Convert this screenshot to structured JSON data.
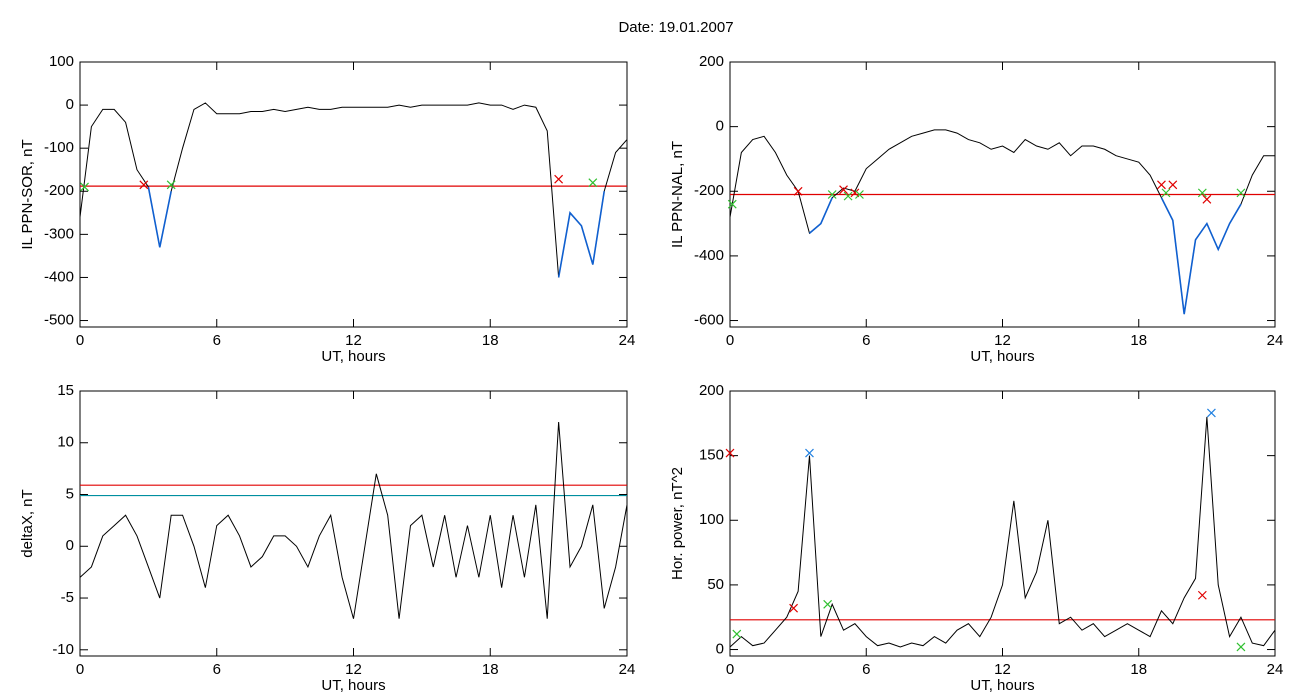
{
  "title": "Date:  19.01.2007",
  "chart_data": [
    {
      "type": "line",
      "ylabel": "IL PPN-SOR, nT",
      "xlabel": "UT, hours",
      "xlim": [
        0,
        24
      ],
      "xticks": [
        0,
        6,
        12,
        18,
        24
      ],
      "ylim": [
        -515,
        100
      ],
      "yticks": [
        100,
        0,
        -100,
        -200,
        -300,
        -400,
        -500
      ],
      "series": [
        {
          "color": "#000000",
          "below_color": "#1060d0",
          "x": [
            0,
            0.5,
            1,
            1.5,
            2,
            2.5,
            3,
            3.5,
            4,
            4.5,
            5,
            5.5,
            6,
            6.5,
            7,
            7.5,
            8,
            8.5,
            9,
            9.5,
            10,
            10.5,
            11,
            11.5,
            12,
            12.5,
            13,
            13.5,
            14,
            14.5,
            15,
            15.5,
            16,
            16.5,
            17,
            17.5,
            18,
            18.5,
            19,
            19.5,
            20,
            20.5,
            21,
            21.5,
            22,
            22.5,
            23,
            23.5,
            24
          ],
          "values": [
            -260,
            -50,
            -10,
            -10,
            -40,
            -150,
            -190,
            -330,
            -200,
            -100,
            -10,
            5,
            -20,
            -20,
            -20,
            -15,
            -15,
            -10,
            -15,
            -10,
            -5,
            -10,
            -10,
            -5,
            -5,
            -5,
            -5,
            -5,
            0,
            -5,
            0,
            0,
            0,
            0,
            0,
            5,
            0,
            0,
            -10,
            0,
            -5,
            -60,
            -400,
            -250,
            -280,
            -370,
            -200,
            -110,
            -80
          ]
        }
      ],
      "hlines": [
        {
          "value": -188,
          "color": "#e00000"
        }
      ],
      "markers": [
        {
          "color": "#e00000",
          "x": [
            2.8,
            21
          ],
          "y": [
            -185,
            -172
          ]
        },
        {
          "color": "#30c030",
          "x": [
            0.2,
            4,
            22.5
          ],
          "y": [
            -190,
            -185,
            -180
          ]
        }
      ]
    },
    {
      "type": "line",
      "ylabel": "IL PPN-NAL, nT",
      "xlabel": "UT, hours",
      "xlim": [
        0,
        24
      ],
      "xticks": [
        0,
        6,
        12,
        18,
        24
      ],
      "ylim": [
        -620,
        200
      ],
      "yticks": [
        200,
        0,
        -200,
        -400,
        -600
      ],
      "series": [
        {
          "color": "#000000",
          "below_color": "#1060d0",
          "x": [
            0,
            0.5,
            1,
            1.5,
            2,
            2.5,
            3,
            3.5,
            4,
            4.5,
            5,
            5.5,
            6,
            6.5,
            7,
            7.5,
            8,
            8.5,
            9,
            9.5,
            10,
            10.5,
            11,
            11.5,
            12,
            12.5,
            13,
            13.5,
            14,
            14.5,
            15,
            15.5,
            16,
            16.5,
            17,
            17.5,
            18,
            18.5,
            19,
            19.5,
            20,
            20.5,
            21,
            21.5,
            22,
            22.5,
            23,
            23.5,
            24
          ],
          "values": [
            -280,
            -80,
            -40,
            -30,
            -80,
            -150,
            -200,
            -330,
            -300,
            -220,
            -190,
            -200,
            -130,
            -100,
            -70,
            -50,
            -30,
            -20,
            -10,
            -10,
            -20,
            -40,
            -50,
            -70,
            -60,
            -80,
            -40,
            -60,
            -70,
            -50,
            -90,
            -60,
            -60,
            -70,
            -90,
            -100,
            -110,
            -150,
            -220,
            -290,
            -580,
            -350,
            -300,
            -380,
            -300,
            -240,
            -150,
            -90,
            -90
          ]
        }
      ],
      "hlines": [
        {
          "value": -210,
          "color": "#e00000"
        }
      ],
      "markers": [
        {
          "color": "#e00000",
          "x": [
            3,
            5,
            5.5,
            19,
            19.5,
            21
          ],
          "y": [
            -200,
            -195,
            -205,
            -180,
            -180,
            -225
          ]
        },
        {
          "color": "#30c030",
          "x": [
            0.1,
            4.5,
            5.2,
            5.7,
            19.2,
            20.8,
            22.5
          ],
          "y": [
            -240,
            -210,
            -215,
            -210,
            -205,
            -205,
            -205
          ]
        }
      ]
    },
    {
      "type": "line",
      "ylabel": "deltaX, nT",
      "xlabel": "UT, hours",
      "xlim": [
        0,
        24
      ],
      "xticks": [
        0,
        6,
        12,
        18,
        24
      ],
      "ylim": [
        -10.6,
        15
      ],
      "yticks": [
        15,
        10,
        5,
        0,
        -5,
        -10
      ],
      "series": [
        {
          "color": "#000000",
          "x": [
            0,
            0.5,
            1,
            1.5,
            2,
            2.5,
            3,
            3.5,
            4,
            4.5,
            5,
            5.5,
            6,
            6.5,
            7,
            7.5,
            8,
            8.5,
            9,
            9.5,
            10,
            10.5,
            11,
            11.5,
            12,
            12.5,
            13,
            13.5,
            14,
            14.5,
            15,
            15.5,
            16,
            16.5,
            17,
            17.5,
            18,
            18.5,
            19,
            19.5,
            20,
            20.5,
            21,
            21.5,
            22,
            22.5,
            23,
            23.5,
            24
          ],
          "values": [
            -3,
            -2,
            1,
            2,
            3,
            1,
            -2,
            -5,
            3,
            3,
            0,
            -4,
            2,
            3,
            1,
            -2,
            -1,
            1,
            1,
            0,
            -2,
            1,
            3,
            -3,
            -7,
            0,
            7,
            3,
            -7,
            2,
            3,
            -2,
            3,
            -3,
            2,
            -3,
            3,
            -4,
            3,
            -3,
            4,
            -7,
            12,
            -2,
            0,
            4,
            -6,
            -2,
            4
          ]
        }
      ],
      "hlines": [
        {
          "value": 5.9,
          "color": "#e00000"
        },
        {
          "value": 4.9,
          "color": "#008fa0"
        }
      ],
      "markers": []
    },
    {
      "type": "line",
      "ylabel": "Hor. power, nT^2",
      "xlabel": "UT, hours",
      "xlim": [
        0,
        24
      ],
      "xticks": [
        0,
        6,
        12,
        18,
        24
      ],
      "ylim": [
        -5,
        200
      ],
      "yticks": [
        200,
        150,
        100,
        50,
        0
      ],
      "series": [
        {
          "color": "#000000",
          "x": [
            0,
            0.5,
            1,
            1.5,
            2,
            2.5,
            3,
            3.5,
            4,
            4.5,
            5,
            5.5,
            6,
            6.5,
            7,
            7.5,
            8,
            8.5,
            9,
            9.5,
            10,
            10.5,
            11,
            11.5,
            12,
            12.5,
            13,
            13.5,
            14,
            14.5,
            15,
            15.5,
            16,
            16.5,
            17,
            17.5,
            18,
            18.5,
            19,
            19.5,
            20,
            20.5,
            21,
            21.5,
            22,
            22.5,
            23,
            23.5,
            24
          ],
          "values": [
            2,
            10,
            3,
            5,
            15,
            25,
            45,
            150,
            10,
            35,
            15,
            20,
            10,
            3,
            5,
            2,
            5,
            3,
            10,
            5,
            15,
            20,
            10,
            25,
            50,
            115,
            40,
            60,
            100,
            20,
            25,
            15,
            20,
            10,
            15,
            20,
            15,
            10,
            30,
            20,
            40,
            55,
            180,
            50,
            10,
            25,
            5,
            3,
            15
          ]
        }
      ],
      "hlines": [
        {
          "value": 23,
          "color": "#e00000"
        }
      ],
      "markers": [
        {
          "color": "#e00000",
          "x": [
            0,
            2.8,
            20.8
          ],
          "y": [
            152,
            32,
            42
          ]
        },
        {
          "color": "#2080e0",
          "x": [
            3.5,
            21.2
          ],
          "y": [
            152,
            183
          ]
        },
        {
          "color": "#30c030",
          "x": [
            0.3,
            4.3,
            22.5
          ],
          "y": [
            12,
            35,
            2
          ]
        }
      ]
    }
  ]
}
